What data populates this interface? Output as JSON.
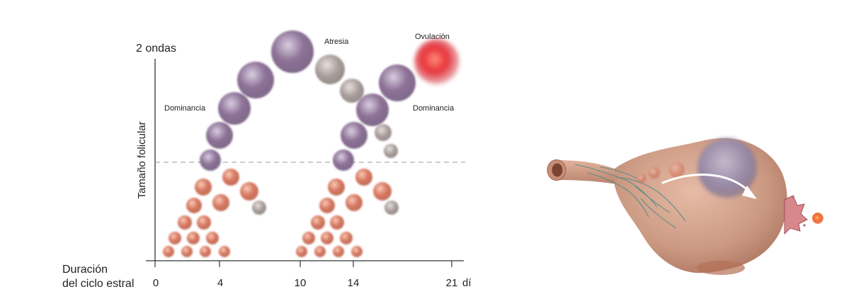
{
  "chart": {
    "title": "2 ondas",
    "ylabel": "Tamaño folicular",
    "xlabel_line1": "Duración",
    "xlabel_line2": "del ciclo estral",
    "x_ticks": [
      "0",
      "4",
      "10",
      "14",
      "21"
    ],
    "x_unit": "dí"
  },
  "annotations": {
    "dominance_1": "Dominancia",
    "atresia": "Atresia",
    "ovulation": "Ovulación",
    "dominance_2": "Dominancia"
  },
  "colors": {
    "small_follicle": "#d4745f",
    "growing_follicle": "#8a6f94",
    "atretic_follicle": "#a89c99",
    "ovulatory_follicle": "#e22a30",
    "ovary_tissue": "#cf9d86",
    "vessels": "#3f8a8a"
  },
  "illustration": {
    "ovary_icon": "ovary-with-oviduct-illustration",
    "arrow_icon": "curved-arrow-icon",
    "oocyte_icon": "released-oocyte-icon"
  }
}
